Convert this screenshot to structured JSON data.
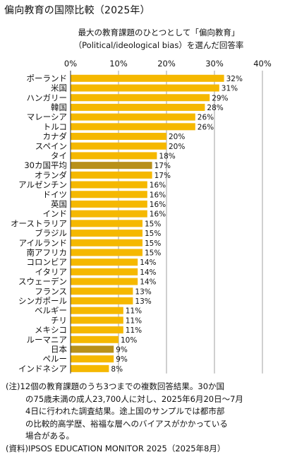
{
  "title": "偏向教育の国際比較（2025年）",
  "subtitle_line1": "最大の教育課題のひとつとして「偏向教育」",
  "subtitle_line2": "（Political/ideological bias）を選んだ回答率",
  "note_line1": "(注)12個の教育課題のうち3つまでの複数回答結果。30か国",
  "note_line2": "の75歳未満の成人23,700人に対し、2025年6月20日～7月",
  "note_line3": "4日に行われた調査結果。途上国のサンプルでは都市部",
  "note_line4": "の比較的高学歴、裕福な層へのバイアスがかかっている",
  "note_line5": "場合がある。",
  "source": "(資料)IPSOS EDUCATION MONITOR 2025（2025年8月）",
  "colors": {
    "bar": "#F5B800",
    "highlight": "#B8901A",
    "grid": "#888888"
  },
  "chart_data": {
    "type": "bar",
    "orientation": "horizontal",
    "title": "偏向教育の国際比較（2025年）",
    "xlim": [
      0,
      40
    ],
    "xticks": [
      "0%",
      "10%",
      "20%",
      "30%",
      "40%"
    ],
    "xtick_values": [
      0,
      10,
      20,
      30,
      40
    ],
    "grid": true,
    "highlighted": [
      "30カ国平均",
      "日本"
    ],
    "categories": [
      "ポーランド",
      "米国",
      "ハンガリー",
      "韓国",
      "マレーシア",
      "トルコ",
      "カナダ",
      "スペイン",
      "タイ",
      "30カ国平均",
      "オランダ",
      "アルゼンチン",
      "ドイツ",
      "英国",
      "インド",
      "オーストラリア",
      "ブラジル",
      "アイルランド",
      "南アフリカ",
      "コロンビア",
      "イタリア",
      "スウェーデン",
      "フランス",
      "シンガポール",
      "ベルギー",
      "チリ",
      "メキシコ",
      "ルーマニア",
      "日本",
      "ペルー",
      "インドネシア"
    ],
    "values": [
      32,
      31,
      29,
      28,
      26,
      26,
      20,
      20,
      18,
      17,
      17,
      16,
      16,
      16,
      16,
      15,
      15,
      15,
      15,
      14,
      14,
      14,
      13,
      13,
      11,
      11,
      11,
      10,
      9,
      9,
      8
    ],
    "value_labels": [
      "32%",
      "31%",
      "29%",
      "28%",
      "26%",
      "26%",
      "20%",
      "20%",
      "18%",
      "17%",
      "17%",
      "16%",
      "16%",
      "16%",
      "16%",
      "15%",
      "15%",
      "15%",
      "15%",
      "14%",
      "14%",
      "14%",
      "13%",
      "13%",
      "11%",
      "11%",
      "11%",
      "10%",
      "9%",
      "9%",
      "8%"
    ]
  }
}
